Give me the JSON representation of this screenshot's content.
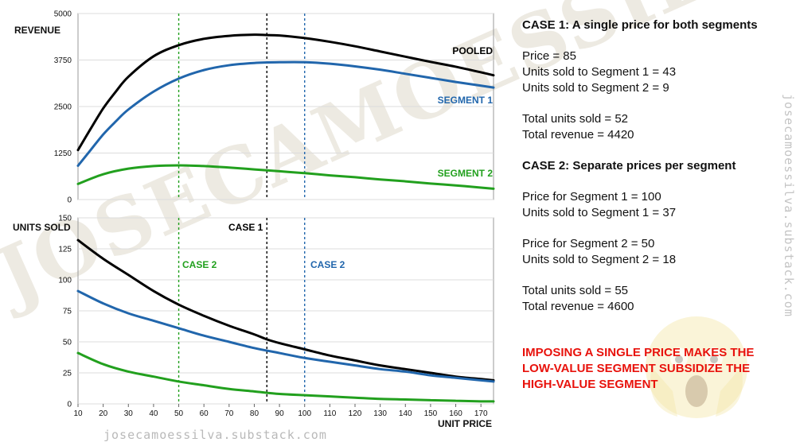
{
  "chart_data": [
    {
      "type": "line",
      "ylabel": "REVENUE",
      "xlabel": "",
      "xlim": [
        10,
        175
      ],
      "ylim": [
        0,
        5000
      ],
      "yticks": [
        "0",
        "1250",
        "2500",
        "3750",
        "5000"
      ],
      "series": [
        {
          "name": "POOLED",
          "color": "#000000",
          "x": [
            10,
            15,
            20,
            25,
            30,
            40,
            50,
            60,
            70,
            80,
            85,
            90,
            100,
            110,
            120,
            130,
            140,
            150,
            160,
            170,
            175
          ],
          "y": [
            1330,
            1900,
            2450,
            2900,
            3300,
            3850,
            4150,
            4320,
            4400,
            4430,
            4420,
            4410,
            4340,
            4240,
            4120,
            3980,
            3840,
            3700,
            3570,
            3420,
            3340
          ]
        },
        {
          "name": "SEGMENT 1",
          "color": "#2166ac",
          "x": [
            10,
            15,
            20,
            25,
            30,
            40,
            50,
            60,
            70,
            80,
            90,
            100,
            110,
            120,
            130,
            140,
            150,
            160,
            170,
            175
          ],
          "y": [
            910,
            1330,
            1750,
            2100,
            2420,
            2900,
            3250,
            3480,
            3610,
            3670,
            3690,
            3690,
            3650,
            3580,
            3490,
            3380,
            3270,
            3160,
            3060,
            3010
          ]
        },
        {
          "name": "SEGMENT 2",
          "color": "#22a01e",
          "x": [
            10,
            20,
            30,
            40,
            50,
            60,
            70,
            80,
            90,
            100,
            110,
            120,
            130,
            140,
            150,
            160,
            170,
            175
          ],
          "y": [
            420,
            680,
            830,
            900,
            920,
            900,
            860,
            810,
            760,
            710,
            650,
            600,
            540,
            490,
            430,
            380,
            320,
            290
          ]
        }
      ],
      "vlines": [
        {
          "x": 85,
          "color": "#000000"
        },
        {
          "x": 100,
          "color": "#2166ac"
        },
        {
          "x": 50,
          "color": "#22a01e"
        }
      ]
    },
    {
      "type": "line",
      "ylabel": "UNITS SOLD",
      "xlabel": "UNIT PRICE",
      "xlim": [
        10,
        175
      ],
      "ylim": [
        0,
        150
      ],
      "xticks": [
        "10",
        "20",
        "30",
        "40",
        "50",
        "60",
        "70",
        "80",
        "90",
        "100",
        "110",
        "120",
        "130",
        "140",
        "150",
        "160",
        "170"
      ],
      "yticks": [
        "0",
        "25",
        "50",
        "75",
        "100",
        "125",
        "150"
      ],
      "series": [
        {
          "name": "POOLED",
          "color": "#000000",
          "x": [
            10,
            20,
            30,
            40,
            50,
            60,
            70,
            80,
            85,
            90,
            100,
            110,
            120,
            130,
            140,
            150,
            160,
            170,
            175
          ],
          "y": [
            132,
            117,
            104,
            91,
            80,
            71,
            63,
            56,
            52,
            49,
            44,
            39,
            35,
            31,
            28,
            25,
            22,
            20,
            19
          ]
        },
        {
          "name": "SEGMENT 1",
          "color": "#2166ac",
          "x": [
            10,
            20,
            30,
            40,
            50,
            60,
            70,
            80,
            90,
            100,
            110,
            120,
            130,
            140,
            150,
            160,
            170,
            175
          ],
          "y": [
            91,
            81,
            73,
            67,
            61,
            55,
            50,
            45,
            41,
            37,
            34,
            31,
            28,
            26,
            23,
            21,
            19,
            18
          ]
        },
        {
          "name": "SEGMENT 2",
          "color": "#22a01e",
          "x": [
            10,
            20,
            30,
            40,
            50,
            60,
            70,
            80,
            90,
            100,
            110,
            120,
            130,
            140,
            150,
            160,
            170,
            175
          ],
          "y": [
            41,
            32,
            26,
            22,
            18,
            15,
            12,
            10,
            8,
            7,
            6,
            5,
            4,
            3.5,
            3,
            2.5,
            2,
            2
          ]
        }
      ],
      "vlines": [
        {
          "x": 85,
          "color": "#000000"
        },
        {
          "x": 100,
          "color": "#2166ac"
        },
        {
          "x": 50,
          "color": "#22a01e"
        }
      ]
    }
  ],
  "labels": {
    "pooled": "POOLED",
    "segment1": "SEGMENT 1",
    "segment2": "SEGMENT 2",
    "case1": "CASE 1",
    "case2_green": "CASE 2",
    "case2_blue": "CASE 2"
  },
  "colors": {
    "pooled": "#000000",
    "segment1": "#2166ac",
    "segment2": "#22a01e",
    "alert": "#e8120c"
  },
  "watermark": {
    "diagonal": "JOSECAMOESSILVA",
    "bottom": "josecamoessilva.substack.com",
    "side": "josecamoessilva.substack.com"
  },
  "case1": {
    "title": "CASE 1: A single price for both segments",
    "price": "Price = 85",
    "units_seg1": "Units sold to Segment 1 = 43",
    "units_seg2": "Units sold to Segment 2 = 9",
    "total_units": "Total units sold = 52",
    "total_revenue": "Total revenue = 4420"
  },
  "case2": {
    "title": "CASE 2: Separate prices per segment",
    "price_seg1": "Price for Segment 1 = 100",
    "units_seg1": "Units sold to Segment 1 = 37",
    "price_seg2": "Price for Segment 2 = 50",
    "units_seg2": "Units sold to Segment 2 = 18",
    "total_units": "Total units sold = 55",
    "total_revenue": "Total revenue = 4600"
  },
  "conclusion": {
    "line1": "IMPOSING A SINGLE PRICE MAKES THE",
    "line2": "LOW-VALUE SEGMENT SUBSIDIZE THE",
    "line3": "HIGH-VALUE SEGMENT"
  },
  "emoji_icon": "screaming-face-icon"
}
